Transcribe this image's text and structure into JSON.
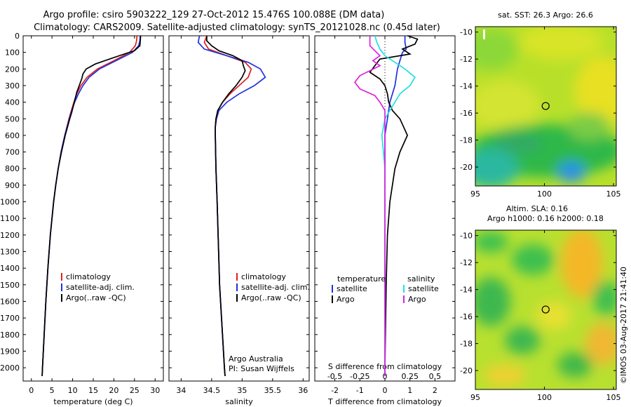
{
  "header": {
    "title_line1": "Argo profile: csiro 5903222_129 27-Oct-2012 15.476S 100.088E (DM data)",
    "title_line2": "Climatology: CARS2009. Satellite-adjusted climatology: synTS_20121028.nc (0.45d later)"
  },
  "colors": {
    "climatology": "#e02020",
    "satellite": "#2030e0",
    "argo": "#000000",
    "salinity_satellite": "#20e0e0",
    "salinity_argo": "#e020e0"
  },
  "chart_data": [
    {
      "type": "line",
      "id": "temperature",
      "xlabel": "temperature (deg C)",
      "ylabel": "",
      "xlim": [
        -2,
        32
      ],
      "ylim": [
        2080,
        0
      ],
      "xticks": [
        0,
        5,
        10,
        15,
        20,
        25,
        30
      ],
      "yticks": [
        0,
        100,
        200,
        300,
        400,
        500,
        600,
        700,
        800,
        900,
        1000,
        1100,
        1200,
        1300,
        1400,
        1500,
        1600,
        1700,
        1800,
        1900,
        2000
      ],
      "legend": [
        "climatology",
        "satellite-adj. clim.",
        "Argo(..raw -QC)"
      ],
      "series": [
        {
          "name": "climatology",
          "color": "#e02020",
          "depth": [
            0,
            30,
            60,
            100,
            150,
            200,
            250,
            300,
            350,
            400,
            450,
            500,
            600,
            700,
            800,
            900,
            1000,
            1200,
            1400,
            1600,
            1800,
            2000,
            2050
          ],
          "values": [
            25.6,
            25.5,
            25.2,
            23.8,
            20.0,
            16.0,
            13.5,
            12.0,
            11.0,
            10.3,
            9.7,
            9.1,
            8.1,
            7.2,
            6.5,
            5.9,
            5.4,
            4.6,
            4.0,
            3.5,
            3.1,
            2.7,
            2.6
          ]
        },
        {
          "name": "satellite-adj. clim.",
          "color": "#2030e0",
          "depth": [
            0,
            30,
            60,
            100,
            150,
            200,
            250,
            300,
            350,
            400,
            450,
            500,
            600,
            700,
            800,
            900,
            1000,
            1200,
            1400,
            1600,
            1800,
            2000,
            2050
          ],
          "values": [
            26.4,
            26.3,
            26.0,
            24.5,
            20.5,
            16.5,
            14.0,
            12.5,
            11.4,
            10.5,
            9.8,
            9.2,
            8.1,
            7.2,
            6.5,
            5.9,
            5.4,
            4.6,
            4.0,
            3.5,
            3.1,
            2.7,
            2.6
          ]
        },
        {
          "name": "Argo",
          "color": "#000000",
          "depth": [
            0,
            30,
            60,
            90,
            110,
            140,
            170,
            200,
            230,
            260,
            300,
            340,
            380,
            420,
            460,
            500,
            600,
            700,
            800,
            900,
            1000,
            1200,
            1400,
            1600,
            1800,
            2000,
            2050
          ],
          "values": [
            26.5,
            26.4,
            26.3,
            25.0,
            22.5,
            19.0,
            15.5,
            13.3,
            12.5,
            12.2,
            11.6,
            11.0,
            10.6,
            10.2,
            9.8,
            9.3,
            8.2,
            7.3,
            6.5,
            5.9,
            5.4,
            4.6,
            4.0,
            3.5,
            3.1,
            2.7,
            2.6
          ]
        }
      ]
    },
    {
      "type": "line",
      "id": "salinity",
      "xlabel": "salinity",
      "ylabel": "",
      "xlim": [
        33.8,
        36.1
      ],
      "ylim": [
        2080,
        0
      ],
      "xticks": [
        34,
        34.5,
        35,
        35.5,
        36
      ],
      "legend": [
        "climatology",
        "satellite-adj. clim.",
        "Argo(..raw -QC)"
      ],
      "annotation": [
        "Argo Australia",
        "PI: Susan Wijffels"
      ],
      "series": [
        {
          "name": "climatology",
          "color": "#e02020",
          "depth": [
            0,
            40,
            80,
            120,
            160,
            200,
            250,
            300,
            350,
            400,
            450,
            500,
            550,
            600,
            800,
            1000,
            1500,
            2000,
            2050
          ],
          "values": [
            34.42,
            34.38,
            34.45,
            34.75,
            35.05,
            35.15,
            35.1,
            34.95,
            34.8,
            34.68,
            34.6,
            34.57,
            34.56,
            34.56,
            34.57,
            34.59,
            34.63,
            34.71,
            34.72
          ]
        },
        {
          "name": "satellite-adj. clim.",
          "color": "#2030e0",
          "depth": [
            0,
            40,
            80,
            120,
            160,
            200,
            250,
            300,
            350,
            400,
            450,
            500,
            550,
            600,
            800,
            1000,
            1500,
            2000,
            2050
          ],
          "values": [
            34.3,
            34.28,
            34.38,
            34.75,
            35.1,
            35.3,
            35.38,
            35.2,
            34.95,
            34.75,
            34.62,
            34.58,
            34.56,
            34.56,
            34.57,
            34.59,
            34.63,
            34.71,
            34.72
          ]
        },
        {
          "name": "Argo",
          "color": "#000000",
          "depth": [
            0,
            30,
            60,
            90,
            120,
            150,
            180,
            210,
            250,
            300,
            350,
            400,
            450,
            500,
            550,
            600,
            800,
            1000,
            1500,
            2000,
            2050
          ],
          "values": [
            34.42,
            34.42,
            34.5,
            34.62,
            34.85,
            35.0,
            35.02,
            35.05,
            35.0,
            34.9,
            34.78,
            34.68,
            34.6,
            34.57,
            34.56,
            34.56,
            34.57,
            34.59,
            34.63,
            34.71,
            34.72
          ]
        }
      ]
    },
    {
      "type": "line",
      "id": "difference",
      "xlabel": "T difference from climatology",
      "xlabel_top": "S difference from climatology",
      "xlim": [
        -2.8,
        2.8
      ],
      "ylim": [
        2080,
        0
      ],
      "xticks": [
        -2,
        -1,
        0,
        1,
        2
      ],
      "xticks_salinity": [
        -0.5,
        -0.25,
        0,
        0.25,
        0.5
      ],
      "legend_temperature_title": "temperature",
      "legend_salinity_title": "salinity",
      "legend": [
        "satellite",
        "Argo",
        "satellite",
        "Argo"
      ],
      "series": [
        {
          "name": "T satellite",
          "color": "#2030e0",
          "depth": [
            0,
            40,
            80,
            100,
            150,
            200,
            300,
            400,
            500,
            600,
            800,
            1000,
            1500,
            2000,
            2050
          ],
          "values": [
            0.8,
            0.8,
            0.85,
            0.7,
            0.6,
            0.5,
            0.4,
            0.2,
            0.1,
            0.0,
            0.0,
            0.0,
            0.0,
            0.0,
            0.0
          ]
        },
        {
          "name": "T Argo",
          "color": "#000000",
          "depth": [
            0,
            20,
            50,
            80,
            110,
            140,
            180,
            220,
            260,
            300,
            350,
            400,
            450,
            500,
            600,
            700,
            800,
            1000,
            1200,
            1500,
            2000,
            2050
          ],
          "values": [
            0.9,
            1.3,
            1.2,
            0.7,
            1.0,
            -0.2,
            -0.4,
            -0.6,
            -0.2,
            0.0,
            0.1,
            0.15,
            0.3,
            0.6,
            0.9,
            0.6,
            0.4,
            0.2,
            0.1,
            0.05,
            0.0,
            0.0
          ]
        },
        {
          "name": "S satellite",
          "color": "#20e0e0",
          "depth": [
            0,
            40,
            80,
            120,
            160,
            200,
            250,
            300,
            350,
            400,
            450,
            500,
            600,
            800,
            1000,
            1500,
            2000,
            2050
          ],
          "values": [
            -0.1,
            -0.08,
            -0.05,
            0.0,
            0.1,
            0.2,
            0.3,
            0.25,
            0.15,
            0.1,
            0.05,
            0.0,
            -0.03,
            0.0,
            0.0,
            0.0,
            0.0,
            0.0
          ]
        },
        {
          "name": "S Argo",
          "color": "#e020e0",
          "depth": [
            0,
            60,
            90,
            120,
            150,
            180,
            210,
            240,
            280,
            320,
            360,
            400,
            450,
            500,
            550,
            600,
            800,
            1000,
            1500,
            2000,
            2050
          ],
          "values": [
            -0.15,
            -0.15,
            -0.1,
            -0.05,
            -0.12,
            -0.05,
            -0.15,
            -0.25,
            -0.3,
            -0.25,
            -0.1,
            -0.05,
            0.0,
            0.0,
            0.0,
            0.0,
            0.0,
            0.0,
            0.0,
            0.0,
            0.0
          ]
        }
      ]
    },
    {
      "type": "heatmap",
      "id": "sst_map",
      "title": "sat. SST: 26.3 Argo: 26.6",
      "xlim": [
        95,
        105.2
      ],
      "ylim": [
        -21.4,
        -9.6
      ],
      "xticks": [
        95,
        100,
        105
      ],
      "yticks": [
        -10,
        -12,
        -14,
        -16,
        -18,
        -20
      ],
      "marker": {
        "lon": 100.088,
        "lat": -15.476
      }
    },
    {
      "type": "heatmap",
      "id": "sla_map",
      "title_line1": "Altim. SLA: 0.16",
      "title_line2": "Argo h1000: 0.16 h2000: 0.18",
      "xlim": [
        95,
        105.2
      ],
      "ylim": [
        -21.4,
        -9.6
      ],
      "xticks": [
        95,
        100,
        105
      ],
      "yticks": [
        -10,
        -12,
        -14,
        -16,
        -18,
        -20
      ],
      "marker": {
        "lon": 100.088,
        "lat": -15.476
      }
    }
  ],
  "footer": {
    "stamp": "©IMOS 03-Aug-2017 21:41:40"
  }
}
